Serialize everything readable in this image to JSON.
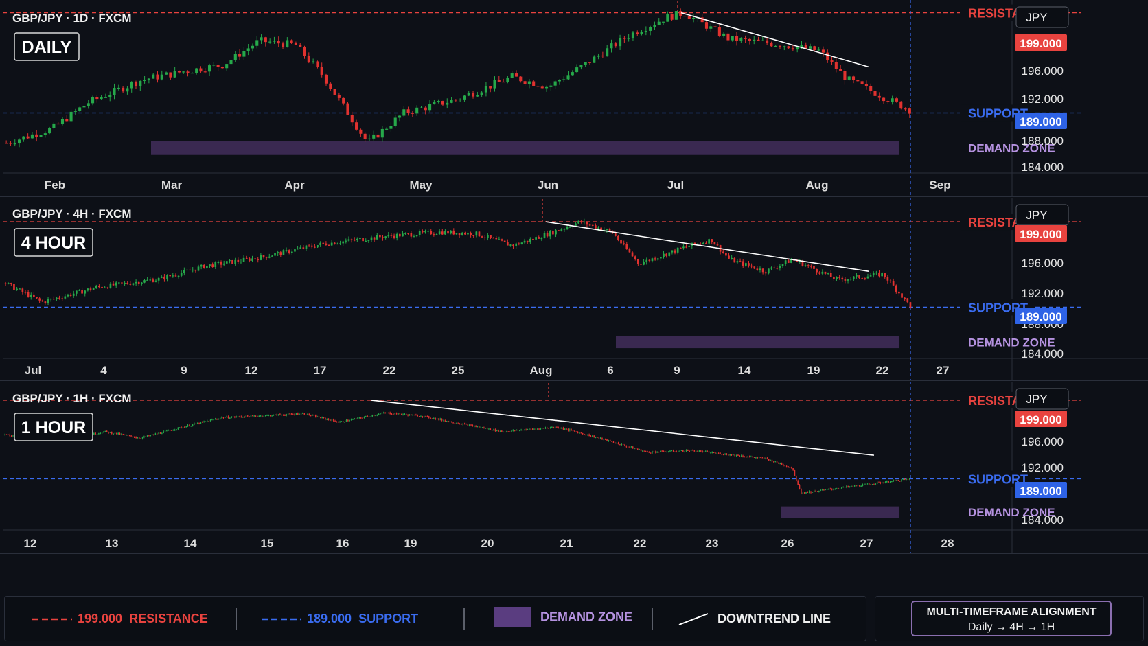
{
  "colors": {
    "background": "#0d1017",
    "bull": "#26a84a",
    "bear": "#e0322f",
    "resistance": "#e8433f",
    "support": "#3a6cf0",
    "demand_zone": "#4a3266",
    "demand_label": "#b592e0",
    "trendline": "#ffffff"
  },
  "panels": [
    {
      "id": "daily",
      "symbol_line": "GBP/JPY · 1D · FXCM",
      "timeframe_badge": "DAILY",
      "currency_button": "JPY",
      "resistance_label": "RESISTANCE",
      "support_label": "SUPPORT",
      "demand_label": "DEMAND ZONE",
      "resistance_price": "199.000",
      "support_price": "189.000",
      "y_ticks": [
        "196.000",
        "192.000",
        "188.000",
        "184.000"
      ],
      "x_ticks": [
        "Feb",
        "Mar",
        "Apr",
        "May",
        "Jun",
        "Jul",
        "Aug",
        "Sep"
      ]
    },
    {
      "id": "4h",
      "symbol_line": "GBP/JPY · 4H · FXCM",
      "timeframe_badge": "4 HOUR",
      "currency_button": "JPY",
      "resistance_label": "RESISTANCE",
      "support_label": "SUPPORT",
      "demand_label": "DEMAND ZONE",
      "resistance_price": "199.000",
      "support_price": "189.000",
      "y_ticks": [
        "196.000",
        "192.000",
        "188.000",
        "184.000"
      ],
      "x_ticks": [
        "Jul",
        "4",
        "9",
        "12",
        "17",
        "22",
        "25",
        "Aug",
        "6",
        "9",
        "14",
        "19",
        "22",
        "27"
      ]
    },
    {
      "id": "1h",
      "symbol_line": "GBP/JPY · 1H · FXCM",
      "timeframe_badge": "1 HOUR",
      "currency_button": "JPY",
      "resistance_label": "RESISTANCE",
      "support_label": "SUPPORT",
      "demand_label": "DEMAND ZONE",
      "resistance_price": "199.000",
      "support_price": "189.000",
      "y_ticks": [
        "196.000",
        "192.000",
        "184.000"
      ],
      "x_ticks": [
        "12",
        "13",
        "14",
        "15",
        "16",
        "19",
        "20",
        "21",
        "22",
        "23",
        "26",
        "27",
        "28"
      ]
    }
  ],
  "legend": {
    "resistance_price": "199.000",
    "resistance_label": "RESISTANCE",
    "support_price": "189.000",
    "support_label": "SUPPORT",
    "demand_label": "DEMAND ZONE",
    "trend_label": "DOWNTREND LINE"
  },
  "alignment": {
    "title": "MULTI-TIMEFRAME ALIGNMENT",
    "flow": "Daily → 4H → 1H"
  },
  "chart_data": [
    {
      "type": "candlestick",
      "title": "GBP/JPY · 1D · FXCM",
      "ylim": [
        183,
        200
      ],
      "resistance": 199.0,
      "support": 189.0,
      "demand_zone": [
        184.8,
        186.2
      ],
      "trend_start": 199.0,
      "trend_end": 193.6,
      "path": [
        [
          0,
          186
        ],
        [
          0.05,
          187.4
        ],
        [
          0.09,
          190
        ],
        [
          0.15,
          192.3
        ],
        [
          0.2,
          193.2
        ],
        [
          0.24,
          193.8
        ],
        [
          0.28,
          196.2
        ],
        [
          0.32,
          195.8
        ],
        [
          0.35,
          192.8
        ],
        [
          0.4,
          186
        ],
        [
          0.44,
          189
        ],
        [
          0.5,
          190.4
        ],
        [
          0.56,
          192.6
        ],
        [
          0.6,
          191.6
        ],
        [
          0.64,
          193.8
        ],
        [
          0.69,
          196.8
        ],
        [
          0.73,
          198.5
        ],
        [
          0.75,
          199
        ],
        [
          0.8,
          196.4
        ],
        [
          0.86,
          195.8
        ],
        [
          0.9,
          195.2
        ],
        [
          0.93,
          192.4
        ],
        [
          1,
          189.3
        ]
      ]
    },
    {
      "type": "candlestick",
      "title": "GBP/JPY · 4H · FXCM",
      "ylim": [
        183,
        201.5
      ],
      "resistance": 199.0,
      "support": 189.0,
      "demand_zone": [
        184.2,
        185.6
      ],
      "trend_start": 199.0,
      "trend_end": 193.2,
      "path": [
        [
          0,
          191.8
        ],
        [
          0.04,
          189.6
        ],
        [
          0.1,
          191.3
        ],
        [
          0.17,
          192.3
        ],
        [
          0.22,
          193.8
        ],
        [
          0.28,
          194.8
        ],
        [
          0.35,
          196.4
        ],
        [
          0.42,
          197.3
        ],
        [
          0.48,
          197.8
        ],
        [
          0.52,
          197.6
        ],
        [
          0.56,
          196.2
        ],
        [
          0.6,
          197.6
        ],
        [
          0.635,
          199
        ],
        [
          0.67,
          197.8
        ],
        [
          0.7,
          194.1
        ],
        [
          0.75,
          196
        ],
        [
          0.78,
          196.9
        ],
        [
          0.8,
          194.6
        ],
        [
          0.84,
          193.2
        ],
        [
          0.87,
          194.6
        ],
        [
          0.92,
          192.2
        ],
        [
          0.97,
          192.9
        ],
        [
          1,
          189.1
        ]
      ]
    },
    {
      "type": "candlestick",
      "title": "GBP/JPY · 1H · FXCM",
      "ylim": [
        182.5,
        201
      ],
      "resistance": 199.0,
      "support": 189.0,
      "demand_zone": [
        184,
        185.5
      ],
      "trend_start": 199.0,
      "trend_end": 192.0,
      "path": [
        [
          0,
          194.6
        ],
        [
          0.04,
          194
        ],
        [
          0.08,
          194.3
        ],
        [
          0.11,
          195
        ],
        [
          0.15,
          194.2
        ],
        [
          0.19,
          195.4
        ],
        [
          0.24,
          196.8
        ],
        [
          0.28,
          197
        ],
        [
          0.33,
          197.3
        ],
        [
          0.37,
          196.2
        ],
        [
          0.42,
          197.4
        ],
        [
          0.46,
          197
        ],
        [
          0.5,
          196.1
        ],
        [
          0.55,
          195
        ],
        [
          0.61,
          195.6
        ],
        [
          0.65,
          194.4
        ],
        [
          0.71,
          192.4
        ],
        [
          0.76,
          192.6
        ],
        [
          0.84,
          191.6
        ],
        [
          0.87,
          190.4
        ],
        [
          0.88,
          187.2
        ],
        [
          0.92,
          187.8
        ],
        [
          1,
          189
        ]
      ]
    }
  ]
}
